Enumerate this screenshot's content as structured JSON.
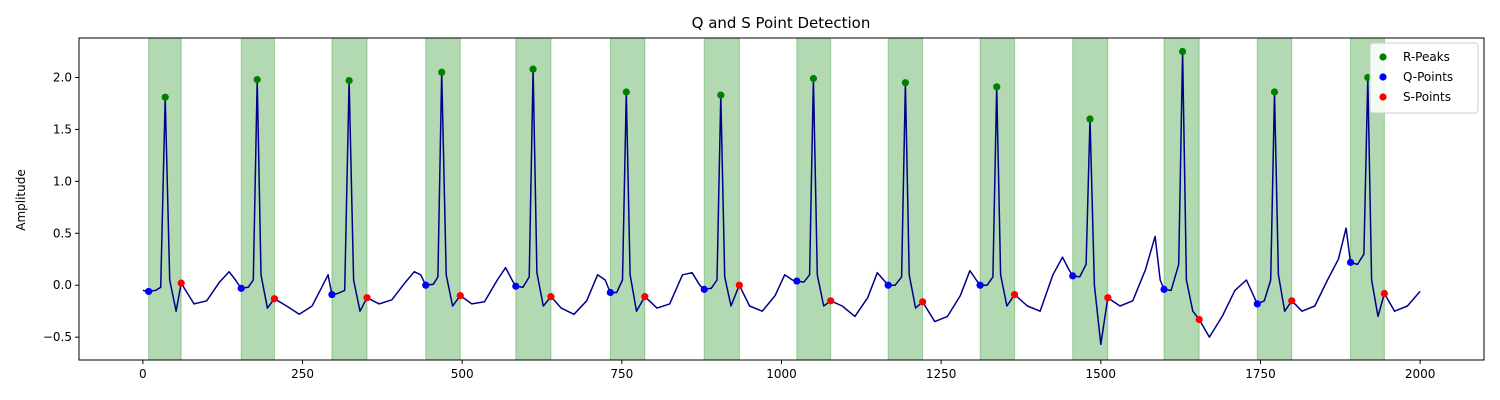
{
  "chart_data": {
    "type": "line",
    "title": "Q and S Point Detection",
    "xlabel": "",
    "ylabel": "Amplitude",
    "xlim": [
      -100,
      2100
    ],
    "ylim": [
      -0.72,
      2.38
    ],
    "xticks": [
      0,
      250,
      500,
      750,
      1000,
      1250,
      1500,
      1750,
      2000
    ],
    "yticks": [
      -0.5,
      0.0,
      0.5,
      1.0,
      1.5,
      2.0
    ],
    "grid": false,
    "legend_position": "top-right",
    "colors": {
      "signal": "#00008b",
      "r_peaks": "#008000",
      "q_points": "#0000ff",
      "s_points": "#ff0000",
      "qrs_region": "#008000"
    },
    "legend": [
      {
        "label": "R-Peaks",
        "color": "#008000"
      },
      {
        "label": "Q-Points",
        "color": "#0000ff"
      },
      {
        "label": "S-Points",
        "color": "#ff0000"
      }
    ],
    "qrs_regions": [
      [
        9,
        60
      ],
      [
        154,
        206
      ],
      [
        296,
        351
      ],
      [
        443,
        497
      ],
      [
        584,
        639
      ],
      [
        732,
        786
      ],
      [
        879,
        934
      ],
      [
        1024,
        1077
      ],
      [
        1167,
        1221
      ],
      [
        1311,
        1365
      ],
      [
        1456,
        1511
      ],
      [
        1599,
        1654
      ],
      [
        1745,
        1799
      ],
      [
        1891,
        1944
      ]
    ],
    "r_peaks": {
      "x": [
        35,
        179,
        323,
        468,
        611,
        757,
        905,
        1050,
        1194,
        1337,
        1483,
        1628,
        1772,
        1918
      ],
      "y": [
        1.81,
        1.98,
        1.97,
        2.05,
        2.08,
        1.86,
        1.83,
        1.99,
        1.95,
        1.91,
        1.6,
        2.25,
        1.86,
        2.0
      ]
    },
    "q_points": {
      "x": [
        9,
        154,
        296,
        443,
        584,
        732,
        879,
        1024,
        1167,
        1311,
        1456,
        1599,
        1745,
        1891
      ],
      "y": [
        -0.06,
        -0.03,
        -0.09,
        0.0,
        -0.01,
        -0.07,
        -0.04,
        0.04,
        0.0,
        0.0,
        0.09,
        -0.04,
        -0.18,
        0.22
      ]
    },
    "s_points": {
      "x": [
        60,
        206,
        351,
        497,
        639,
        786,
        934,
        1077,
        1221,
        1365,
        1511,
        1654,
        1799,
        1944
      ],
      "y": [
        0.02,
        -0.13,
        -0.12,
        -0.1,
        -0.11,
        -0.11,
        0.0,
        -0.15,
        -0.16,
        -0.09,
        -0.12,
        -0.33,
        -0.15,
        -0.08
      ]
    },
    "signal": {
      "name": "",
      "x": [
        0,
        9,
        20,
        28,
        35,
        42,
        52,
        60,
        80,
        100,
        120,
        135,
        145,
        154,
        165,
        173,
        179,
        185,
        195,
        206,
        225,
        245,
        265,
        280,
        290,
        296,
        305,
        316,
        323,
        330,
        340,
        351,
        370,
        390,
        410,
        425,
        435,
        443,
        455,
        462,
        468,
        475,
        485,
        497,
        515,
        535,
        555,
        568,
        578,
        584,
        595,
        605,
        611,
        617,
        627,
        639,
        655,
        675,
        695,
        712,
        724,
        732,
        742,
        751,
        757,
        763,
        773,
        786,
        805,
        825,
        845,
        860,
        872,
        879,
        890,
        899,
        905,
        911,
        921,
        934,
        950,
        970,
        990,
        1005,
        1017,
        1024,
        1035,
        1044,
        1050,
        1056,
        1066,
        1077,
        1095,
        1115,
        1135,
        1150,
        1160,
        1167,
        1178,
        1188,
        1194,
        1200,
        1210,
        1221,
        1240,
        1260,
        1280,
        1295,
        1305,
        1311,
        1322,
        1331,
        1337,
        1343,
        1353,
        1365,
        1385,
        1405,
        1425,
        1440,
        1450,
        1456,
        1467,
        1477,
        1483,
        1490,
        1500,
        1511,
        1530,
        1550,
        1570,
        1585,
        1593,
        1599,
        1610,
        1622,
        1628,
        1634,
        1644,
        1654,
        1670,
        1690,
        1710,
        1728,
        1739,
        1745,
        1756,
        1766,
        1772,
        1778,
        1788,
        1799,
        1815,
        1835,
        1855,
        1872,
        1884,
        1891,
        1902,
        1912,
        1918,
        1924,
        1934,
        1944,
        1960,
        1980,
        2000
      ],
      "y": [
        -0.05,
        -0.06,
        -0.05,
        -0.02,
        1.81,
        0.05,
        -0.25,
        0.02,
        -0.18,
        -0.15,
        0.03,
        0.13,
        0.05,
        -0.03,
        -0.02,
        0.05,
        1.98,
        0.1,
        -0.22,
        -0.13,
        -0.2,
        -0.28,
        -0.2,
        -0.02,
        0.1,
        -0.09,
        -0.08,
        -0.05,
        1.97,
        0.05,
        -0.25,
        -0.12,
        -0.18,
        -0.14,
        0.02,
        0.13,
        0.1,
        0.0,
        0.01,
        0.08,
        2.05,
        0.1,
        -0.2,
        -0.1,
        -0.18,
        -0.16,
        0.05,
        0.17,
        0.05,
        -0.01,
        -0.02,
        0.08,
        2.08,
        0.12,
        -0.2,
        -0.11,
        -0.22,
        -0.28,
        -0.15,
        0.1,
        0.05,
        -0.07,
        -0.07,
        0.05,
        1.86,
        0.1,
        -0.25,
        -0.11,
        -0.22,
        -0.18,
        0.1,
        0.12,
        0.0,
        -0.04,
        -0.03,
        0.05,
        1.83,
        0.08,
        -0.2,
        0.0,
        -0.2,
        -0.25,
        -0.1,
        0.1,
        0.05,
        0.04,
        0.03,
        0.1,
        1.99,
        0.1,
        -0.2,
        -0.15,
        -0.2,
        -0.3,
        -0.12,
        0.12,
        0.05,
        0.0,
        0.0,
        0.08,
        1.95,
        0.1,
        -0.22,
        -0.16,
        -0.35,
        -0.3,
        -0.1,
        0.14,
        0.05,
        0.0,
        0.0,
        0.08,
        1.91,
        0.1,
        -0.2,
        -0.09,
        -0.2,
        -0.25,
        0.1,
        0.27,
        0.15,
        0.09,
        0.08,
        0.2,
        1.6,
        0.0,
        -0.57,
        -0.12,
        -0.2,
        -0.15,
        0.15,
        0.47,
        0.05,
        -0.04,
        -0.05,
        0.2,
        2.25,
        0.05,
        -0.25,
        -0.33,
        -0.5,
        -0.3,
        -0.05,
        0.05,
        -0.1,
        -0.18,
        -0.15,
        0.05,
        1.86,
        0.1,
        -0.25,
        -0.15,
        -0.25,
        -0.2,
        0.05,
        0.25,
        0.55,
        0.22,
        0.2,
        0.3,
        2.0,
        0.05,
        -0.3,
        -0.08,
        -0.25,
        -0.2,
        -0.06
      ]
    }
  }
}
